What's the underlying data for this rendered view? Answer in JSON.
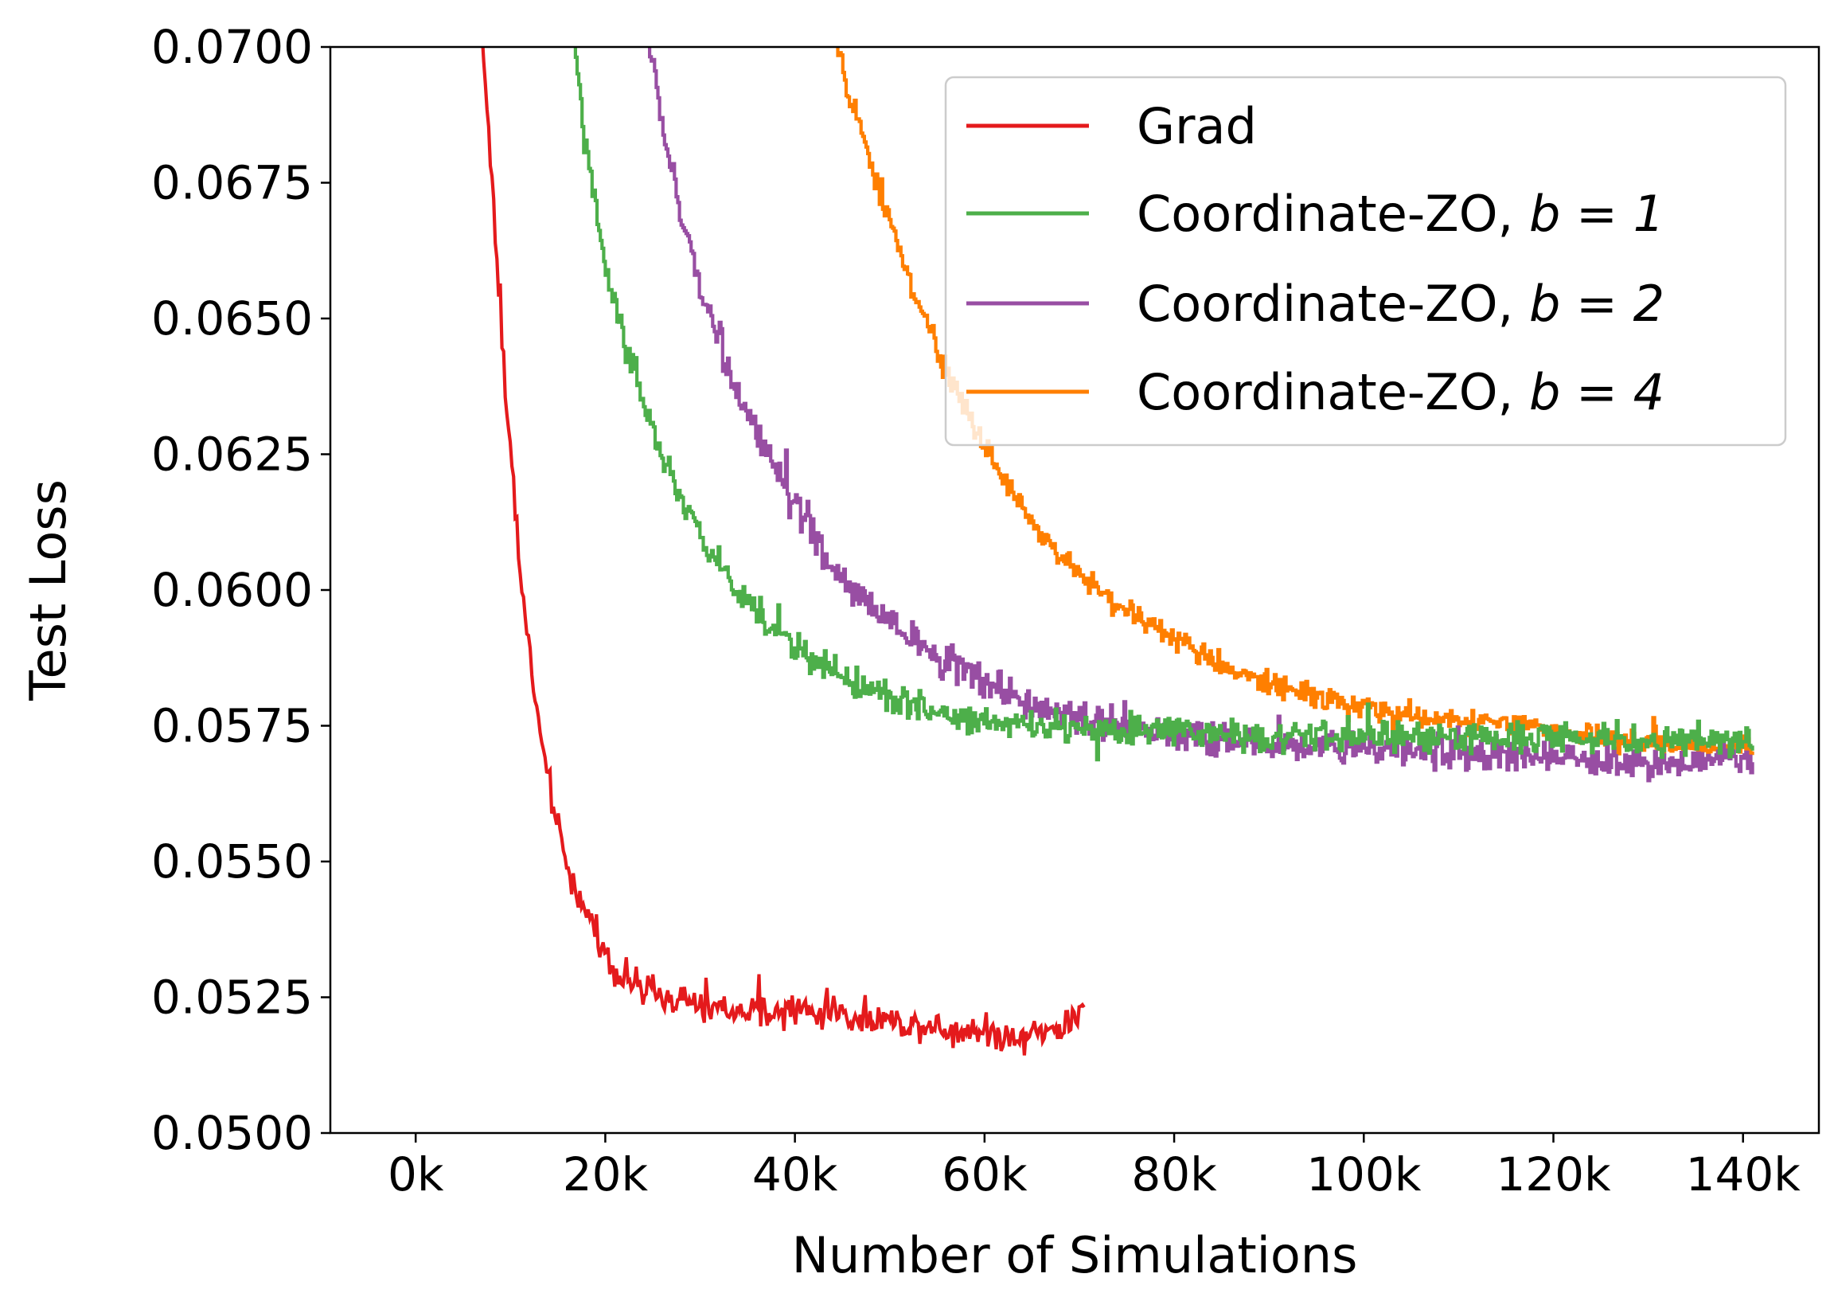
{
  "chart_data": {
    "type": "line",
    "xlabel": "Number of Simulations",
    "ylabel": "Test Loss",
    "xlim": [
      -9000,
      148000
    ],
    "ylim": [
      0.05,
      0.07
    ],
    "x_ticks": [
      0,
      20000,
      40000,
      60000,
      80000,
      100000,
      120000,
      140000
    ],
    "x_tick_labels": [
      "0k",
      "20k",
      "40k",
      "60k",
      "80k",
      "100k",
      "120k",
      "140k"
    ],
    "y_ticks": [
      0.05,
      0.0525,
      0.055,
      0.0575,
      0.06,
      0.0625,
      0.065,
      0.0675,
      0.07
    ],
    "y_tick_labels": [
      "0.0500",
      "0.0525",
      "0.0550",
      "0.0575",
      "0.0600",
      "0.0625",
      "0.0650",
      "0.0675",
      "0.0700"
    ],
    "grid": false,
    "legend_position": "top-right",
    "legend": [
      {
        "label": "Grad",
        "suffix": ""
      },
      {
        "label": "Coordinate-ZO, ",
        "suffix": "b = 1"
      },
      {
        "label": "Coordinate-ZO, ",
        "suffix": "b = 2"
      },
      {
        "label": "Coordinate-ZO, ",
        "suffix": "b = 4"
      }
    ],
    "series": [
      {
        "name": "Grad",
        "color": "#e41a1c",
        "stepped": false,
        "x": [
          7000,
          7700,
          8400,
          9000,
          9700,
          10400,
          11000,
          11700,
          12400,
          13000,
          13700,
          14400,
          15000,
          16000,
          17000,
          18000,
          19000,
          20000,
          21000,
          22000,
          24000,
          26000,
          28000,
          30000,
          32000,
          34000,
          36000,
          38000,
          40000,
          42000,
          44000,
          46000,
          48000,
          50000,
          52000,
          54000,
          56000,
          58000,
          60000,
          62000,
          64000,
          66000,
          67500,
          68500,
          69500,
          70500
        ],
        "y": [
          0.0702,
          0.0685,
          0.0665,
          0.0648,
          0.0632,
          0.0618,
          0.0604,
          0.0593,
          0.0583,
          0.0575,
          0.0567,
          0.0561,
          0.0556,
          0.0549,
          0.0545,
          0.054,
          0.0537,
          0.0533,
          0.053,
          0.0529,
          0.0526,
          0.0525,
          0.0524,
          0.0523,
          0.0523,
          0.0522,
          0.0522,
          0.0522,
          0.0523,
          0.0522,
          0.0523,
          0.0521,
          0.0521,
          0.0521,
          0.052,
          0.052,
          0.0519,
          0.0519,
          0.0519,
          0.0518,
          0.0518,
          0.0519,
          0.0519,
          0.052,
          0.0521,
          0.0522
        ],
        "noise": 0.00045
      },
      {
        "name": "Coordinate-ZO, b = 1",
        "color": "#4daf4a",
        "stepped": true,
        "x": [
          16500,
          17500,
          18500,
          19500,
          20500,
          22000,
          24000,
          26000,
          28000,
          30000,
          32000,
          34000,
          36000,
          38000,
          40000,
          42000,
          44000,
          46000,
          48000,
          50000,
          52000,
          54000,
          56000,
          58000,
          60000,
          65000,
          70000,
          75000,
          80000,
          90000,
          100000,
          110000,
          120000,
          130000,
          141000
        ],
        "y": [
          0.0702,
          0.0688,
          0.0675,
          0.0664,
          0.0656,
          0.0646,
          0.0634,
          0.0624,
          0.0616,
          0.061,
          0.0604,
          0.06,
          0.0596,
          0.0592,
          0.0589,
          0.0587,
          0.0585,
          0.0583,
          0.0581,
          0.058,
          0.0579,
          0.0578,
          0.0577,
          0.0576,
          0.0576,
          0.0575,
          0.0574,
          0.0574,
          0.0574,
          0.0573,
          0.0573,
          0.0573,
          0.0573,
          0.0572,
          0.0572
        ],
        "noise": 0.00042
      },
      {
        "name": "Coordinate-ZO, b = 2",
        "color": "#984ea3",
        "stepped": true,
        "x": [
          24500,
          26000,
          28000,
          30000,
          32000,
          34000,
          36000,
          38000,
          40000,
          42000,
          44000,
          46000,
          48000,
          50000,
          52000,
          54000,
          56000,
          58000,
          60000,
          62000,
          65000,
          70000,
          75000,
          80000,
          90000,
          100000,
          110000,
          120000,
          130000,
          141000
        ],
        "y": [
          0.0702,
          0.0685,
          0.0668,
          0.0656,
          0.0646,
          0.0636,
          0.0628,
          0.0621,
          0.0615,
          0.061,
          0.0604,
          0.06,
          0.0597,
          0.0594,
          0.0591,
          0.0589,
          0.0587,
          0.0585,
          0.0583,
          0.0581,
          0.0579,
          0.0576,
          0.0575,
          0.0573,
          0.0572,
          0.0571,
          0.057,
          0.0569,
          0.0568,
          0.0569
        ],
        "noise": 0.00045
      },
      {
        "name": "Coordinate-ZO, b = 4",
        "color": "#ff7f00",
        "stepped": true,
        "x": [
          44000,
          46000,
          48000,
          50000,
          52000,
          54000,
          56000,
          58000,
          60000,
          62000,
          64000,
          66000,
          68000,
          70000,
          72000,
          74000,
          76000,
          78000,
          80000,
          84000,
          88000,
          92000,
          96000,
          100000,
          104000,
          108000,
          112000,
          116000,
          120000,
          124000,
          128000,
          132000,
          136000,
          141000
        ],
        "y": [
          0.0702,
          0.0689,
          0.0678,
          0.0667,
          0.0657,
          0.0648,
          0.064,
          0.0633,
          0.0626,
          0.062,
          0.0615,
          0.061,
          0.0606,
          0.0603,
          0.06,
          0.0597,
          0.0595,
          0.0593,
          0.0591,
          0.0587,
          0.0584,
          0.0582,
          0.058,
          0.0578,
          0.0577,
          0.0576,
          0.0576,
          0.0575,
          0.0574,
          0.0573,
          0.0572,
          0.0571,
          0.0571,
          0.0571
        ],
        "noise": 0.00032
      }
    ]
  }
}
